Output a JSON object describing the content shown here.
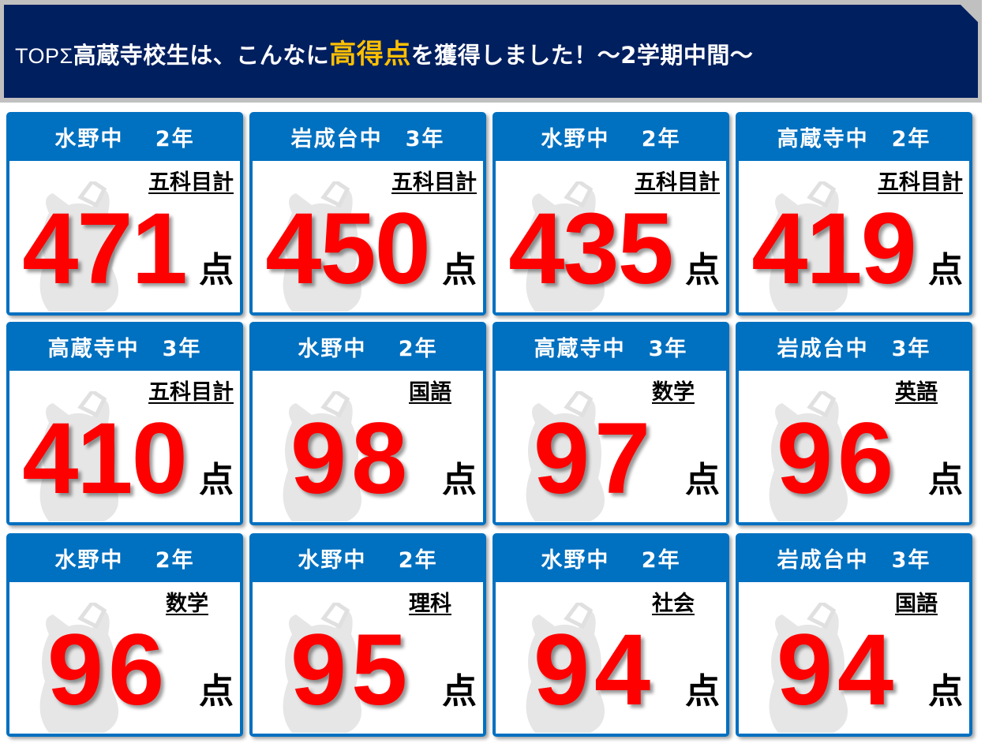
{
  "banner": {
    "prefix": "TOPΣ",
    "part1": "高蔵寺校生は、こんなに",
    "highlight": "高得点",
    "part2": "を獲得しました！～2学期中間～",
    "highlight_color": "#ffc000",
    "background": "#001f5f"
  },
  "accent": "#0070c0",
  "score_color": "#ff0000",
  "unit": "点",
  "cards": [
    {
      "school": "水野中　 2年",
      "subject": "五科目計",
      "score": "471"
    },
    {
      "school": "岩成台中　3年",
      "subject": "五科目計",
      "score": "450"
    },
    {
      "school": "水野中　 2年",
      "subject": "五科目計",
      "score": "435"
    },
    {
      "school": "高蔵寺中　2年",
      "subject": "五科目計",
      "score": "419"
    },
    {
      "school": "高蔵寺中　3年",
      "subject": "五科目計",
      "score": "410"
    },
    {
      "school": "水野中　 2年",
      "subject": "国語",
      "score": "98"
    },
    {
      "school": "高蔵寺中　3年",
      "subject": "数学",
      "score": "97"
    },
    {
      "school": "岩成台中　3年",
      "subject": "英語",
      "score": "96"
    },
    {
      "school": "水野中　 2年",
      "subject": "数学",
      "score": "96"
    },
    {
      "school": "水野中　 2年",
      "subject": "理科",
      "score": "95"
    },
    {
      "school": "水野中　 2年",
      "subject": "社会",
      "score": "94"
    },
    {
      "school": "岩成台中　3年",
      "subject": "国語",
      "score": "94"
    }
  ]
}
